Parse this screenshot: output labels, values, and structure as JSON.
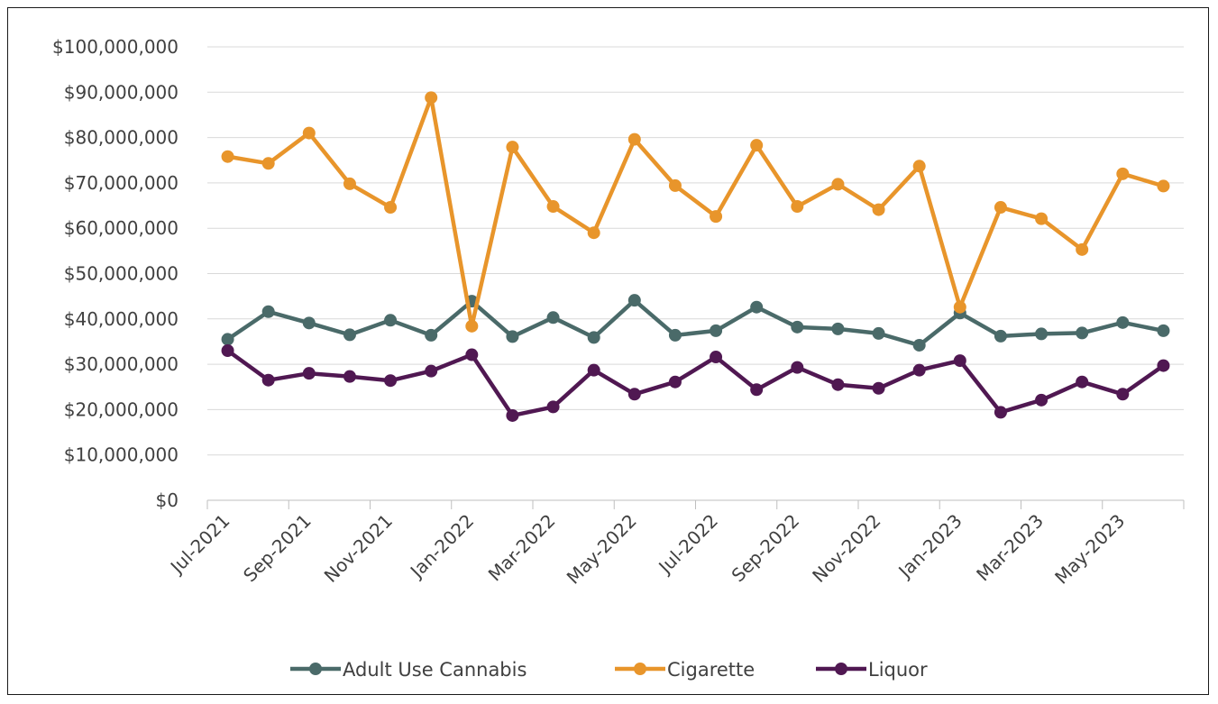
{
  "chart_data": {
    "type": "line",
    "title": "",
    "xlabel": "",
    "ylabel": "",
    "ylim": [
      0,
      100000000
    ],
    "y_ticks": [
      0,
      10000000,
      20000000,
      30000000,
      40000000,
      50000000,
      60000000,
      70000000,
      80000000,
      90000000,
      100000000
    ],
    "y_tick_labels": [
      "$0",
      "$10,000,000",
      "$20,000,000",
      "$30,000,000",
      "$40,000,000",
      "$50,000,000",
      "$60,000,000",
      "$70,000,000",
      "$80,000,000",
      "$90,000,000",
      "$100,000,000"
    ],
    "x_tick_labels": [
      "Jul-2021",
      "Sep-2021",
      "Nov-2021",
      "Jan-2022",
      "Mar-2022",
      "May-2022",
      "Jul-2022",
      "Sep-2022",
      "Nov-2022",
      "Jan-2023",
      "Mar-2023",
      "May-2023"
    ],
    "x": [
      "Jul-2021",
      "Aug-2021",
      "Sep-2021",
      "Oct-2021",
      "Nov-2021",
      "Dec-2021",
      "Jan-2022",
      "Feb-2022",
      "Mar-2022",
      "Apr-2022",
      "May-2022",
      "Jun-2022",
      "Jul-2022",
      "Aug-2022",
      "Sep-2022",
      "Oct-2022",
      "Nov-2022",
      "Dec-2022",
      "Jan-2023",
      "Feb-2023",
      "Mar-2023",
      "Apr-2023",
      "May-2023",
      "Jun-2023"
    ],
    "grid": true,
    "legend_position": "bottom",
    "series": [
      {
        "name": "Adult Use Cannabis",
        "color": "#4a6a69",
        "values": [
          35500000,
          41600000,
          39100000,
          36500000,
          39700000,
          36400000,
          43900000,
          36100000,
          40300000,
          35900000,
          44100000,
          36400000,
          37400000,
          42600000,
          38200000,
          37800000,
          36800000,
          34200000,
          41300000,
          36200000,
          36700000,
          36900000,
          39200000,
          37400000
        ]
      },
      {
        "name": "Cigarette",
        "color": "#e8952b",
        "values": [
          75800000,
          74300000,
          81000000,
          69800000,
          64600000,
          88800000,
          38400000,
          77900000,
          64800000,
          59000000,
          79600000,
          69400000,
          62600000,
          78300000,
          64800000,
          69700000,
          64100000,
          73700000,
          42600000,
          64600000,
          62100000,
          55300000,
          72000000,
          69300000
        ]
      },
      {
        "name": "Liquor",
        "color": "#501852",
        "values": [
          33000000,
          26500000,
          28000000,
          27300000,
          26400000,
          28500000,
          32100000,
          18700000,
          20600000,
          28700000,
          23400000,
          26100000,
          31600000,
          24400000,
          29300000,
          25500000,
          24700000,
          28700000,
          30800000,
          19400000,
          22100000,
          26100000,
          23400000,
          29700000
        ]
      }
    ]
  }
}
